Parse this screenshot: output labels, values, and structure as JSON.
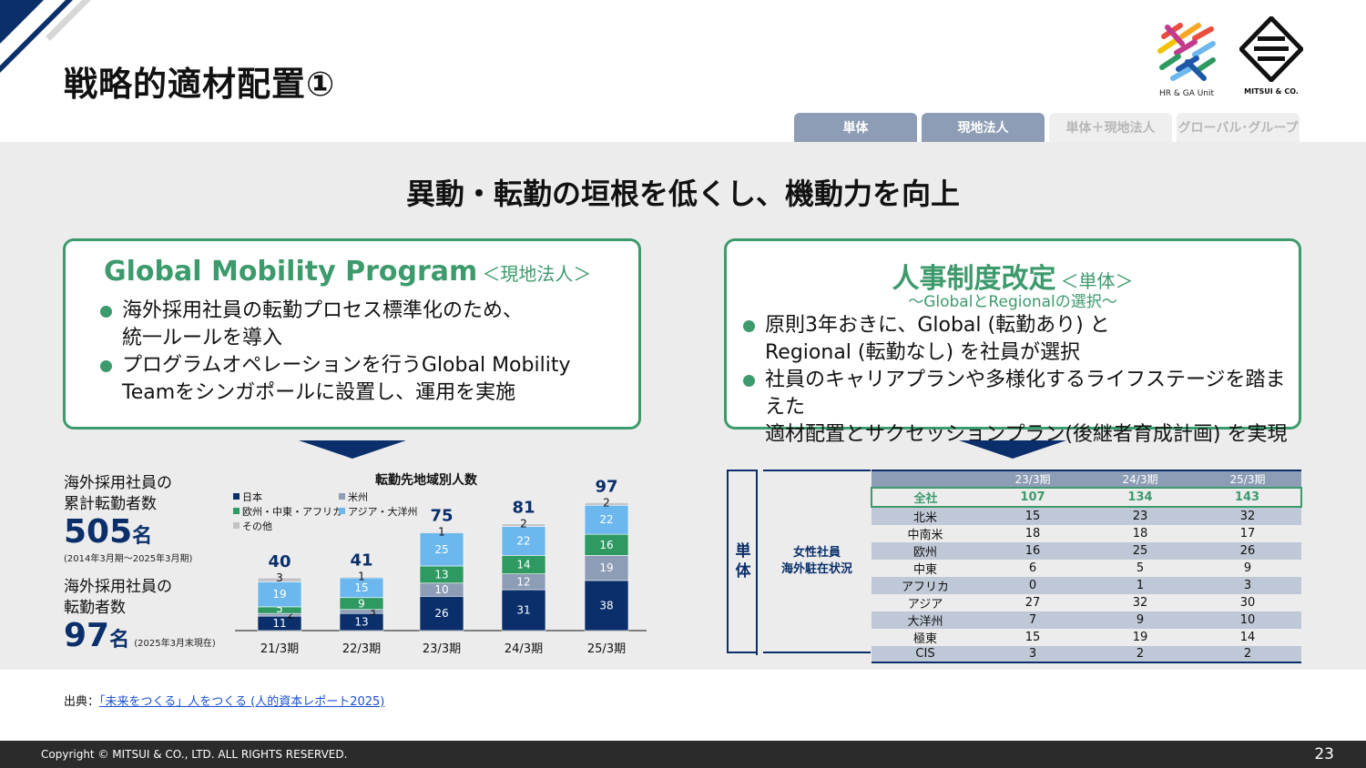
{
  "page": {
    "title": "戦略的適材配置①",
    "headline": "異動・転勤の垣根を低くし、機動力を向上",
    "page_number": "23"
  },
  "logos": {
    "hr_caption": "HR & GA Unit",
    "mitsui_caption": "MITSUI & CO."
  },
  "tabs": [
    {
      "label": "単体",
      "active": true
    },
    {
      "label": "現地法人",
      "active": true
    },
    {
      "label": "単体＋現地法人",
      "active": false
    },
    {
      "label": "グローバル･グループ",
      "active": false
    }
  ],
  "left_box": {
    "heading": "Global Mobility Program",
    "tag": "＜現地法人＞",
    "bullets": [
      {
        "line1": "海外採用社員の転勤プロセス標準化のため、",
        "line2": "統一ルールを導入"
      },
      {
        "line1": "プログラムオペレーションを行うGlobal Mobility",
        "line2": "Teamをシンガポールに設置し、運用を実施"
      }
    ]
  },
  "right_box": {
    "heading": "人事制度改定",
    "tag": "＜単体＞",
    "subtitle": "～GlobalとRegionalの選択～",
    "bullets": [
      {
        "line1": "原則3年おきに、Global (転勤あり) と",
        "line2": "Regional (転勤なし) を社員が選択"
      },
      {
        "line1": "社員のキャリアプランや多様化するライフステージを踏まえた",
        "line2": "適材配置とサクセッションプラン(後継者育成計画) を実現"
      }
    ]
  },
  "stats": {
    "cumulative_label1": "海外採用社員の",
    "cumulative_label2": "累計転勤者数",
    "cumulative_value": "505",
    "cumulative_unit": "名",
    "cumulative_note": "(2014年3月期～2025年3月期)",
    "current_label1": "海外採用社員の",
    "current_label2": "転勤者数",
    "current_value": "97",
    "current_unit": "名",
    "current_note": "(2025年3月末現在)"
  },
  "chart_data": {
    "type": "bar",
    "stacked": true,
    "title": "転勤先地域別人数",
    "categories": [
      "21/3期",
      "22/3期",
      "23/3期",
      "24/3期",
      "25/3期"
    ],
    "totals": [
      40,
      41,
      75,
      81,
      97
    ],
    "series": [
      {
        "name": "日本",
        "color": "#0a2f6b",
        "values": [
          11,
          13,
          26,
          31,
          38
        ]
      },
      {
        "name": "米州",
        "color": "#8d9db5",
        "values": [
          2,
          3,
          10,
          12,
          19
        ]
      },
      {
        "name": "欧州・中東・アフリカ",
        "color": "#2e9a62",
        "values": [
          5,
          9,
          13,
          14,
          16
        ]
      },
      {
        "name": "アジア・大洋州",
        "color": "#6cb8ee",
        "values": [
          19,
          15,
          25,
          22,
          22
        ]
      },
      {
        "name": "その他",
        "color": "#c4c4c4",
        "values": [
          3,
          1,
          1,
          2,
          2
        ]
      }
    ],
    "ylim": [
      0,
      100
    ],
    "legend": "top-left"
  },
  "table": {
    "unit_label": "単体",
    "group_label1": "女性社員",
    "group_label2": "海外駐在状況",
    "columns": [
      "",
      "23/3期",
      "24/3期",
      "25/3期"
    ],
    "rows": [
      [
        "全社",
        "107",
        "134",
        "143"
      ],
      [
        "北米",
        "15",
        "23",
        "32"
      ],
      [
        "中南米",
        "18",
        "18",
        "17"
      ],
      [
        "欧州",
        "16",
        "25",
        "26"
      ],
      [
        "中東",
        "6",
        "5",
        "9"
      ],
      [
        "アフリカ",
        "0",
        "1",
        "3"
      ],
      [
        "アジア",
        "27",
        "32",
        "30"
      ],
      [
        "大洋州",
        "7",
        "9",
        "10"
      ],
      [
        "極東",
        "15",
        "19",
        "14"
      ],
      [
        "CIS",
        "3",
        "2",
        "2"
      ]
    ]
  },
  "source": {
    "prefix": "出典：",
    "link": "「未来をつくる」人をつくる (人的資本レポート2025)"
  },
  "footer": {
    "copyright": "Copyright © MITSUI & CO., LTD. ALL RIGHTS RESERVED."
  },
  "colors": {
    "green": "#3d9a6c",
    "navy": "#0a2f6b",
    "tab": "#8d9db5"
  }
}
